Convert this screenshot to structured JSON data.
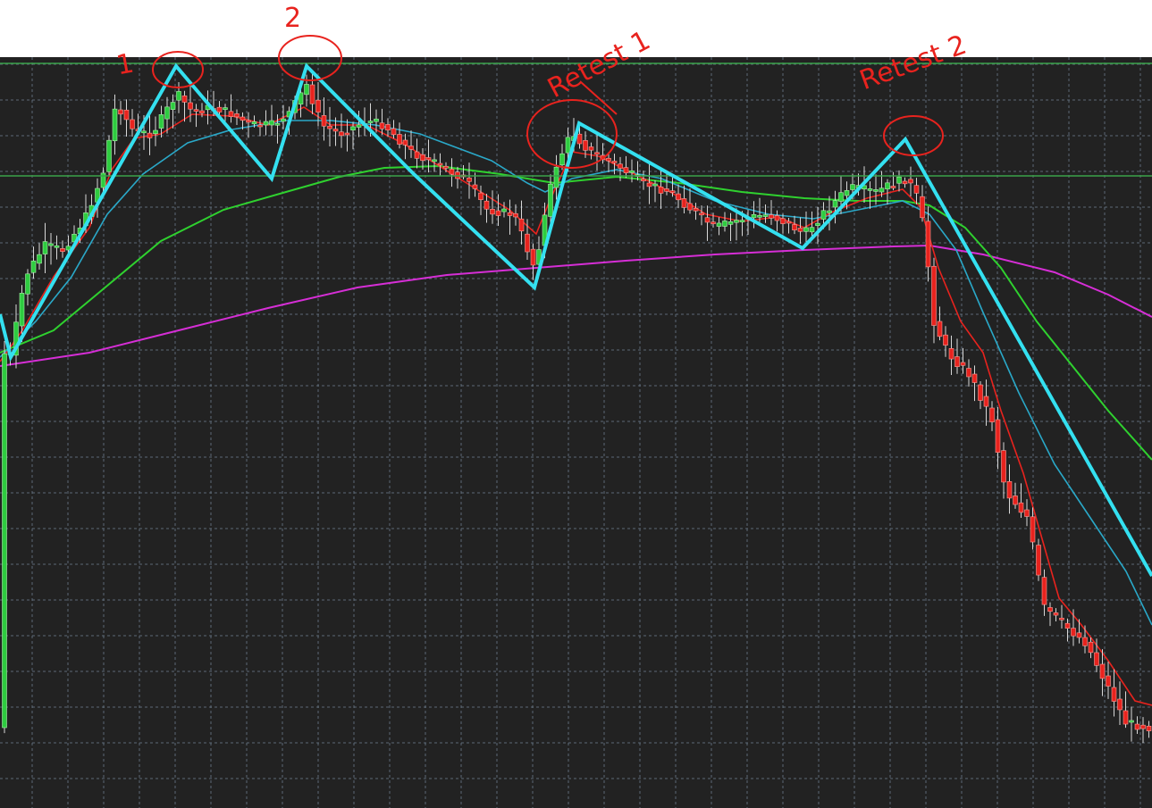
{
  "chart_data": {
    "type": "candlestick",
    "background": "#222222",
    "grid": true,
    "colors": {
      "bull": "#2ecc40",
      "bear": "#e8231e",
      "wick": "#d8d8d8",
      "ma_fast": "#e8231e",
      "ma_mid": "#2aa8c8",
      "ma_slow": "#2fd12f",
      "ma_long": "#d62ed6",
      "zigzag": "#34e0f0",
      "levels": "#3aa24a",
      "annotation": "#e8231e"
    },
    "annotations": [
      {
        "id": "peak-1",
        "text": "1"
      },
      {
        "id": "peak-2",
        "text": "2"
      },
      {
        "id": "retest-1",
        "text": "Retest 1"
      },
      {
        "id": "retest-2",
        "text": "Retest 2"
      }
    ]
  }
}
